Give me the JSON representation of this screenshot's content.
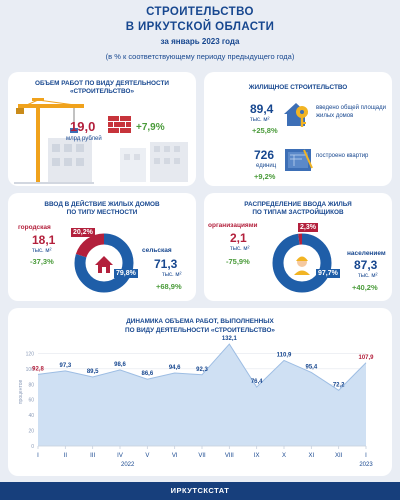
{
  "header": {
    "title_line1": "СТРОИТЕЛЬСТВО",
    "title_line2": "В ИРКУТСКОЙ ОБЛАСТИ",
    "period": "за январь 2023 года",
    "subtitle": "(в % к соответствующему периоду предыдущего года)"
  },
  "works": {
    "title_line1": "ОБЪЕМ РАБОТ ПО ВИДУ ДЕЯТЕЛЬНОСТИ",
    "title_line2": "«СТРОИТЕЛЬСТВО»",
    "value": "19,0",
    "unit": "млрд рублей",
    "change": "+7,9%"
  },
  "housing": {
    "title": "ЖИЛИЩНОЕ СТРОИТЕЛЬСТВО",
    "area_value": "89,4",
    "area_unit": "тыс. м²",
    "area_change": "+25,8%",
    "area_label": "введено общей площади жилых домов",
    "flats_value": "726",
    "flats_unit": "единиц",
    "flats_change": "+9,2%",
    "flats_label": "построено квартир"
  },
  "area_type": {
    "title_line1": "ВВОД В ДЕЙСТВИЕ ЖИЛЫХ ДОМОВ",
    "title_line2": "ПО ТИПУ МЕСТНОСТИ",
    "urban_label": "городская",
    "urban_value": "18,1",
    "urban_unit": "тыс. м²",
    "urban_change": "-37,3%",
    "urban_share": "20,2%",
    "urban_share_num": 20.2,
    "rural_label": "сельская",
    "rural_value": "71,3",
    "rural_unit": "тыс. м²",
    "rural_change": "+68,9%",
    "rural_share": "79,8%",
    "rural_share_num": 79.8
  },
  "developers": {
    "title_line1": "РАСПРЕДЕЛЕНИЕ ВВОДА ЖИЛЬЯ",
    "title_line2": "ПО ТИПАМ ЗАСТРОЙЩИКОВ",
    "org_label": "организациями",
    "org_value": "2,1",
    "org_unit": "тыс. м²",
    "org_change": "-75,9%",
    "org_share": "2,3%",
    "org_share_num": 2.3,
    "pop_label": "населением",
    "pop_value": "87,3",
    "pop_unit": "тыс. м²",
    "pop_change": "+40,2%",
    "pop_share": "97,7%",
    "pop_share_num": 97.7
  },
  "chart_data": {
    "type": "area",
    "title_line1": "ДИНАМИКА ОБЪЕМА РАБОТ, ВЫПОЛНЕННЫХ",
    "title_line2": "ПО ВИДУ ДЕЯТЕЛЬНОСТИ «СТРОИТЕЛЬСТВО»",
    "ylabel": "процентов",
    "yticks": [
      "0",
      "20",
      "40",
      "60",
      "80",
      "100",
      "120"
    ],
    "ylim": [
      0,
      140
    ],
    "categories": [
      "I",
      "II",
      "III",
      "IV",
      "V",
      "VI",
      "VII",
      "VIII",
      "IX",
      "X",
      "XI",
      "XII",
      "I"
    ],
    "values": [
      92.8,
      97.3,
      89.5,
      98.6,
      86.6,
      94.6,
      92.3,
      132.1,
      76.4,
      110.9,
      95.4,
      72.2,
      107.9
    ],
    "value_labels": [
      "92,8",
      "97,3",
      "89,5",
      "98,6",
      "86,6",
      "94,6",
      "92,3",
      "132,1",
      "76,4",
      "110,9",
      "95,4",
      "72,2",
      "107,9"
    ],
    "highlight_indices": [
      0,
      12
    ],
    "year_labels": [
      "2022",
      "2023"
    ],
    "colors": {
      "fill": "#cfe0f3",
      "line": "#9dbde3",
      "label": "#17478f",
      "highlight": "#b3203c"
    }
  },
  "footer": {
    "text": "ИРКУТСКСТАТ"
  }
}
